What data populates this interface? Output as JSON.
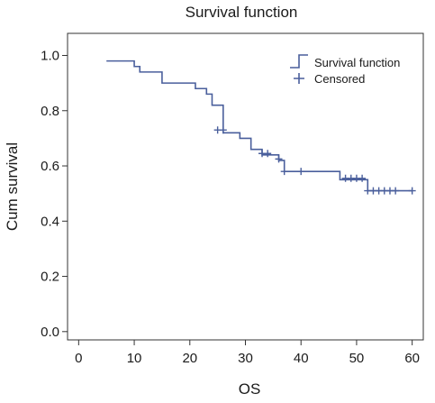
{
  "chart_data": {
    "type": "line",
    "title": "Survival function",
    "xlabel": "OS",
    "ylabel": "Cum survival",
    "xlim": [
      -2,
      62
    ],
    "ylim": [
      -0.03,
      1.08
    ],
    "x_ticks": [
      0,
      10,
      20,
      30,
      40,
      50,
      60
    ],
    "y_ticks": [
      0.0,
      0.2,
      0.4,
      0.6,
      0.8,
      1.0
    ],
    "y_tick_labels": [
      "0.0",
      "0.2",
      "0.4",
      "0.6",
      "0.8",
      "1.0"
    ],
    "grid": false,
    "legend_position": "top-right",
    "line_color": "#4a5f9c",
    "series": [
      {
        "name": "Survival function",
        "kind": "step",
        "x": [
          5,
          10,
          11,
          15,
          17,
          21,
          23,
          24,
          26,
          27,
          29,
          31,
          33,
          36,
          37,
          40,
          47,
          48,
          52,
          60
        ],
        "y": [
          0.98,
          0.96,
          0.94,
          0.9,
          0.9,
          0.88,
          0.86,
          0.82,
          0.72,
          0.72,
          0.7,
          0.66,
          0.64,
          0.62,
          0.58,
          0.58,
          0.55,
          0.55,
          0.51,
          0.51
        ]
      },
      {
        "name": "Censored",
        "kind": "marker",
        "marker": "+",
        "x": [
          25,
          26,
          33,
          34,
          36,
          37,
          40,
          48,
          49,
          50,
          51,
          52,
          53,
          54,
          55,
          56,
          57,
          60
        ],
        "y": [
          0.73,
          0.73,
          0.645,
          0.645,
          0.625,
          0.58,
          0.58,
          0.555,
          0.555,
          0.555,
          0.555,
          0.51,
          0.51,
          0.51,
          0.51,
          0.51,
          0.51,
          0.51
        ]
      }
    ]
  }
}
